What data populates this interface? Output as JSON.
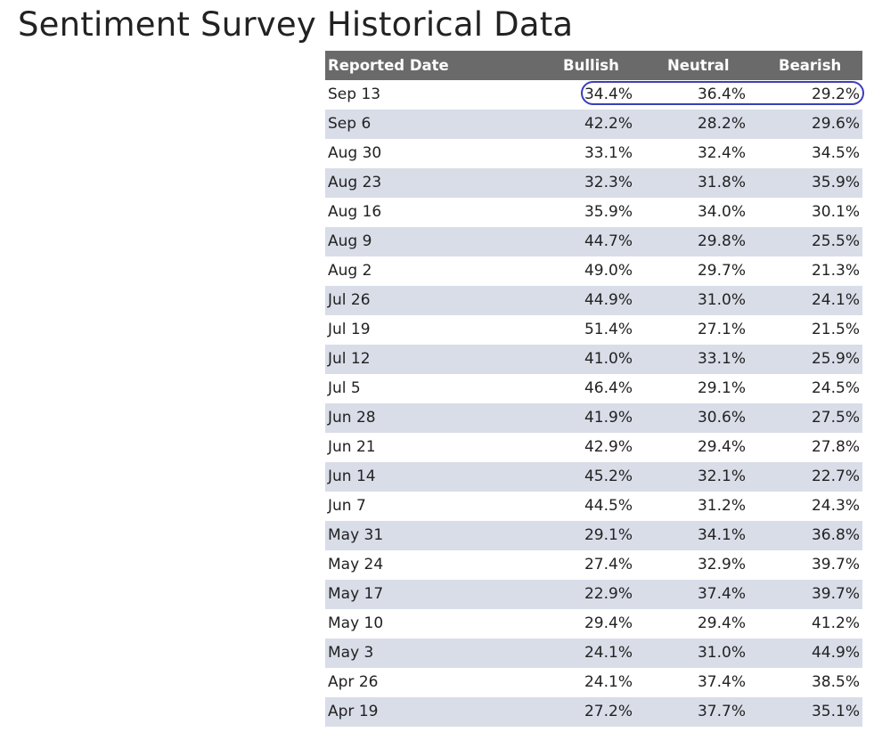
{
  "page": {
    "title": "Sentiment Survey Historical Data"
  },
  "table": {
    "headers": {
      "date": "Reported Date",
      "bullish": "Bullish",
      "neutral": "Neutral",
      "bearish": "Bearish"
    },
    "header_bg": "#6a6a6a",
    "stripe_bg": "#d9dde8",
    "highlight_color": "#3a3fb8",
    "highlighted_row": 0,
    "rows": [
      {
        "date": "Sep 13",
        "bullish": "34.4%",
        "neutral": "36.4%",
        "bearish": "29.2%"
      },
      {
        "date": "Sep 6",
        "bullish": "42.2%",
        "neutral": "28.2%",
        "bearish": "29.6%"
      },
      {
        "date": "Aug 30",
        "bullish": "33.1%",
        "neutral": "32.4%",
        "bearish": "34.5%"
      },
      {
        "date": "Aug 23",
        "bullish": "32.3%",
        "neutral": "31.8%",
        "bearish": "35.9%"
      },
      {
        "date": "Aug 16",
        "bullish": "35.9%",
        "neutral": "34.0%",
        "bearish": "30.1%"
      },
      {
        "date": "Aug 9",
        "bullish": "44.7%",
        "neutral": "29.8%",
        "bearish": "25.5%"
      },
      {
        "date": "Aug 2",
        "bullish": "49.0%",
        "neutral": "29.7%",
        "bearish": "21.3%"
      },
      {
        "date": "Jul 26",
        "bullish": "44.9%",
        "neutral": "31.0%",
        "bearish": "24.1%"
      },
      {
        "date": "Jul 19",
        "bullish": "51.4%",
        "neutral": "27.1%",
        "bearish": "21.5%"
      },
      {
        "date": "Jul 12",
        "bullish": "41.0%",
        "neutral": "33.1%",
        "bearish": "25.9%"
      },
      {
        "date": "Jul 5",
        "bullish": "46.4%",
        "neutral": "29.1%",
        "bearish": "24.5%"
      },
      {
        "date": "Jun 28",
        "bullish": "41.9%",
        "neutral": "30.6%",
        "bearish": "27.5%"
      },
      {
        "date": "Jun 21",
        "bullish": "42.9%",
        "neutral": "29.4%",
        "bearish": "27.8%"
      },
      {
        "date": "Jun 14",
        "bullish": "45.2%",
        "neutral": "32.1%",
        "bearish": "22.7%"
      },
      {
        "date": "Jun 7",
        "bullish": "44.5%",
        "neutral": "31.2%",
        "bearish": "24.3%"
      },
      {
        "date": "May 31",
        "bullish": "29.1%",
        "neutral": "34.1%",
        "bearish": "36.8%"
      },
      {
        "date": "May 24",
        "bullish": "27.4%",
        "neutral": "32.9%",
        "bearish": "39.7%"
      },
      {
        "date": "May 17",
        "bullish": "22.9%",
        "neutral": "37.4%",
        "bearish": "39.7%"
      },
      {
        "date": "May 10",
        "bullish": "29.4%",
        "neutral": "29.4%",
        "bearish": "41.2%"
      },
      {
        "date": "May 3",
        "bullish": "24.1%",
        "neutral": "31.0%",
        "bearish": "44.9%"
      },
      {
        "date": "Apr 26",
        "bullish": "24.1%",
        "neutral": "37.4%",
        "bearish": "38.5%"
      },
      {
        "date": "Apr 19",
        "bullish": "27.2%",
        "neutral": "37.7%",
        "bearish": "35.1%"
      }
    ]
  }
}
